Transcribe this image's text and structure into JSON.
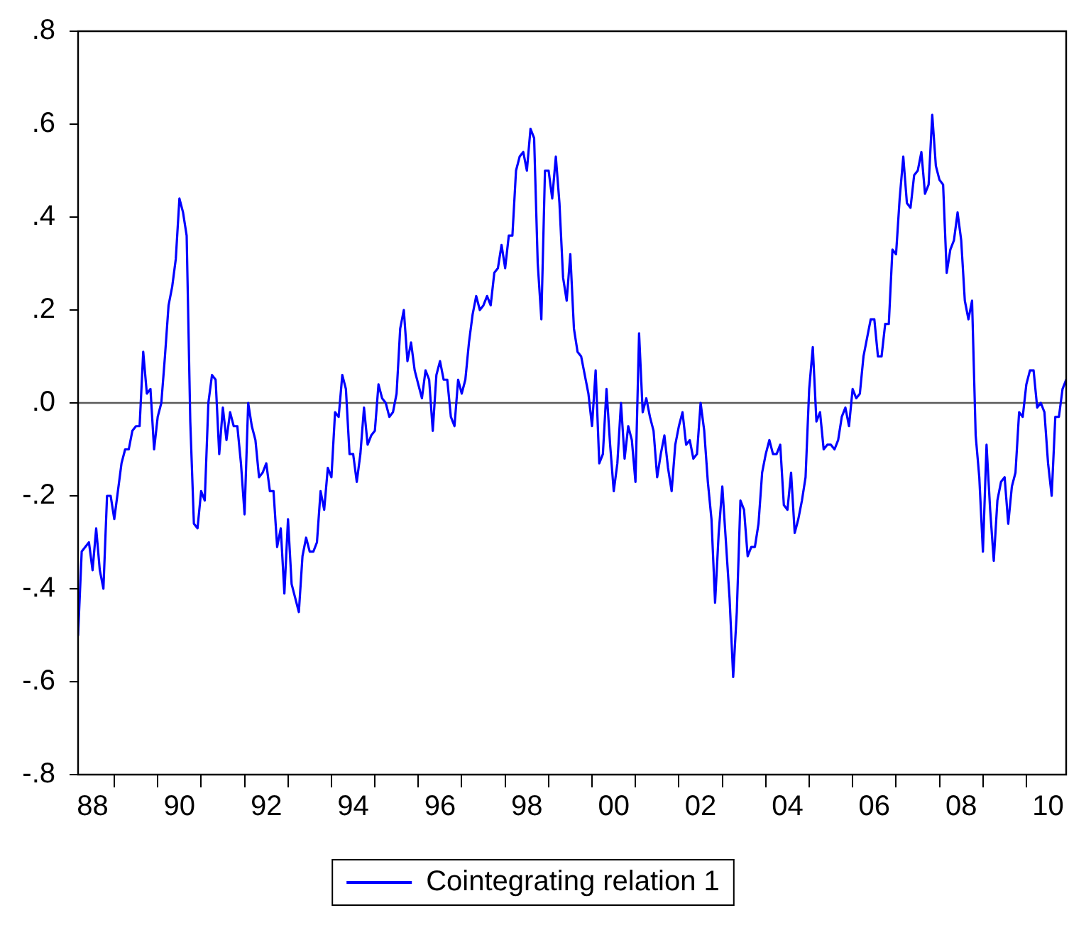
{
  "chart_data": {
    "type": "line",
    "x": [
      "1988-03",
      "1988-04",
      "1988-05",
      "1988-06",
      "1988-07",
      "1988-08",
      "1988-09",
      "1988-10",
      "1988-11",
      "1988-12",
      "1989-01",
      "1989-02",
      "1989-03",
      "1989-04",
      "1989-05",
      "1989-06",
      "1989-07",
      "1989-08",
      "1989-09",
      "1989-10",
      "1989-11",
      "1989-12",
      "1990-01",
      "1990-02",
      "1990-03",
      "1990-04",
      "1990-05",
      "1990-06",
      "1990-07",
      "1990-08",
      "1990-09",
      "1990-10",
      "1990-11",
      "1990-12",
      "1991-01",
      "1991-02",
      "1991-03",
      "1991-04",
      "1991-05",
      "1991-06",
      "1991-07",
      "1991-08",
      "1991-09",
      "1991-10",
      "1991-11",
      "1991-12",
      "1992-01",
      "1992-02",
      "1992-03",
      "1992-04",
      "1992-05",
      "1992-06",
      "1992-07",
      "1992-08",
      "1992-09",
      "1992-10",
      "1992-11",
      "1992-12",
      "1993-01",
      "1993-02",
      "1993-03",
      "1993-04",
      "1993-05",
      "1993-06",
      "1993-07",
      "1993-08",
      "1993-09",
      "1993-10",
      "1993-11",
      "1993-12",
      "1994-01",
      "1994-02",
      "1994-03",
      "1994-04",
      "1994-05",
      "1994-06",
      "1994-07",
      "1994-08",
      "1994-09",
      "1994-10",
      "1994-11",
      "1994-12",
      "1995-01",
      "1995-02",
      "1995-03",
      "1995-04",
      "1995-05",
      "1995-06",
      "1995-07",
      "1995-08",
      "1995-09",
      "1995-10",
      "1995-11",
      "1995-12",
      "1996-01",
      "1996-02",
      "1996-03",
      "1996-04",
      "1996-05",
      "1996-06",
      "1996-07",
      "1996-08",
      "1996-09",
      "1996-10",
      "1996-11",
      "1996-12",
      "1997-01",
      "1997-02",
      "1997-03",
      "1997-04",
      "1997-05",
      "1997-06",
      "1997-07",
      "1997-08",
      "1997-09",
      "1997-10",
      "1997-11",
      "1997-12",
      "1998-01",
      "1998-02",
      "1998-03",
      "1998-04",
      "1998-05",
      "1998-06",
      "1998-07",
      "1998-08",
      "1998-09",
      "1998-10",
      "1998-11",
      "1998-12",
      "1999-01",
      "1999-02",
      "1999-03",
      "1999-04",
      "1999-05",
      "1999-06",
      "1999-07",
      "1999-08",
      "1999-09",
      "1999-10",
      "1999-11",
      "1999-12",
      "2000-01",
      "2000-02",
      "2000-03",
      "2000-04",
      "2000-05",
      "2000-06",
      "2000-07",
      "2000-08",
      "2000-09",
      "2000-10",
      "2000-11",
      "2000-12",
      "2001-01",
      "2001-02",
      "2001-03",
      "2001-04",
      "2001-05",
      "2001-06",
      "2001-07",
      "2001-08",
      "2001-09",
      "2001-10",
      "2001-11",
      "2001-12",
      "2002-01",
      "2002-02",
      "2002-03",
      "2002-04",
      "2002-05",
      "2002-06",
      "2002-07",
      "2002-08",
      "2002-09",
      "2002-10",
      "2002-11",
      "2002-12",
      "2003-01",
      "2003-02",
      "2003-03",
      "2003-04",
      "2003-05",
      "2003-06",
      "2003-07",
      "2003-08",
      "2003-09",
      "2003-10",
      "2003-11",
      "2003-12",
      "2004-01",
      "2004-02",
      "2004-03",
      "2004-04",
      "2004-05",
      "2004-06",
      "2004-07",
      "2004-08",
      "2004-09",
      "2004-10",
      "2004-11",
      "2004-12",
      "2005-01",
      "2005-02",
      "2005-03",
      "2005-04",
      "2005-05",
      "2005-06",
      "2005-07",
      "2005-08",
      "2005-09",
      "2005-10",
      "2005-11",
      "2005-12",
      "2006-01",
      "2006-02",
      "2006-03",
      "2006-04",
      "2006-05",
      "2006-06",
      "2006-07",
      "2006-08",
      "2006-09",
      "2006-10",
      "2006-11",
      "2006-12",
      "2007-01",
      "2007-02",
      "2007-03",
      "2007-04",
      "2007-05",
      "2007-06",
      "2007-07",
      "2007-08",
      "2007-09",
      "2007-10",
      "2007-11",
      "2007-12",
      "2008-01",
      "2008-02",
      "2008-03",
      "2008-04",
      "2008-05",
      "2008-06",
      "2008-07",
      "2008-08",
      "2008-09",
      "2008-10",
      "2008-11",
      "2008-12",
      "2009-01",
      "2009-02",
      "2009-03",
      "2009-04",
      "2009-05",
      "2009-06",
      "2009-07",
      "2009-08",
      "2009-09",
      "2009-10",
      "2009-11",
      "2009-12",
      "2010-01",
      "2010-02",
      "2010-03",
      "2010-04",
      "2010-05",
      "2010-06",
      "2010-07",
      "2010-08",
      "2010-09",
      "2010-10",
      "2010-11",
      "2010-12"
    ],
    "series": [
      {
        "name": "Cointegrating relation 1",
        "color": "#0000ff",
        "values": [
          -0.5,
          -0.32,
          -0.31,
          -0.3,
          -0.36,
          -0.27,
          -0.36,
          -0.4,
          -0.2,
          -0.2,
          -0.25,
          -0.19,
          -0.13,
          -0.1,
          -0.1,
          -0.06,
          -0.05,
          -0.05,
          0.11,
          0.02,
          0.03,
          -0.1,
          -0.03,
          0.0,
          0.1,
          0.21,
          0.25,
          0.31,
          0.44,
          0.41,
          0.36,
          -0.04,
          -0.26,
          -0.27,
          -0.19,
          -0.21,
          0.0,
          0.06,
          0.05,
          -0.11,
          -0.01,
          -0.08,
          -0.02,
          -0.05,
          -0.05,
          -0.13,
          -0.24,
          0.0,
          -0.05,
          -0.08,
          -0.16,
          -0.15,
          -0.13,
          -0.19,
          -0.19,
          -0.31,
          -0.27,
          -0.41,
          -0.25,
          -0.39,
          -0.42,
          -0.45,
          -0.33,
          -0.29,
          -0.32,
          -0.32,
          -0.3,
          -0.19,
          -0.23,
          -0.14,
          -0.16,
          -0.02,
          -0.03,
          0.06,
          0.03,
          -0.11,
          -0.11,
          -0.17,
          -0.11,
          -0.01,
          -0.09,
          -0.07,
          -0.06,
          0.04,
          0.01,
          0.0,
          -0.03,
          -0.02,
          0.02,
          0.16,
          0.2,
          0.09,
          0.13,
          0.07,
          0.04,
          0.01,
          0.07,
          0.05,
          -0.06,
          0.06,
          0.09,
          0.05,
          0.05,
          -0.03,
          -0.05,
          0.05,
          0.02,
          0.05,
          0.13,
          0.19,
          0.23,
          0.2,
          0.21,
          0.23,
          0.21,
          0.28,
          0.29,
          0.34,
          0.29,
          0.36,
          0.36,
          0.5,
          0.53,
          0.54,
          0.5,
          0.59,
          0.57,
          0.3,
          0.18,
          0.5,
          0.5,
          0.44,
          0.53,
          0.43,
          0.27,
          0.22,
          0.32,
          0.16,
          0.11,
          0.1,
          0.06,
          0.02,
          -0.05,
          0.07,
          -0.13,
          -0.11,
          0.03,
          -0.09,
          -0.19,
          -0.13,
          0.0,
          -0.12,
          -0.05,
          -0.08,
          -0.17,
          0.15,
          -0.02,
          0.01,
          -0.03,
          -0.06,
          -0.16,
          -0.11,
          -0.07,
          -0.14,
          -0.19,
          -0.09,
          -0.05,
          -0.02,
          -0.09,
          -0.08,
          -0.12,
          -0.11,
          0.0,
          -0.06,
          -0.17,
          -0.25,
          -0.43,
          -0.28,
          -0.18,
          -0.3,
          -0.42,
          -0.59,
          -0.45,
          -0.21,
          -0.23,
          -0.33,
          -0.31,
          -0.31,
          -0.26,
          -0.15,
          -0.11,
          -0.08,
          -0.11,
          -0.11,
          -0.09,
          -0.22,
          -0.23,
          -0.15,
          -0.28,
          -0.25,
          -0.21,
          -0.16,
          0.03,
          0.12,
          -0.04,
          -0.02,
          -0.1,
          -0.09,
          -0.09,
          -0.1,
          -0.08,
          -0.03,
          -0.01,
          -0.05,
          0.03,
          0.01,
          0.02,
          0.1,
          0.14,
          0.18,
          0.18,
          0.1,
          0.1,
          0.17,
          0.17,
          0.33,
          0.32,
          0.44,
          0.53,
          0.43,
          0.42,
          0.49,
          0.5,
          0.54,
          0.45,
          0.47,
          0.62,
          0.51,
          0.48,
          0.47,
          0.28,
          0.33,
          0.35,
          0.41,
          0.35,
          0.22,
          0.18,
          0.22,
          -0.07,
          -0.16,
          -0.32,
          -0.09,
          -0.23,
          -0.34,
          -0.21,
          -0.17,
          -0.16,
          -0.26,
          -0.18,
          -0.15,
          -0.02,
          -0.03,
          0.04,
          0.07,
          0.07,
          -0.01,
          0.0,
          -0.02,
          -0.13,
          -0.2,
          -0.03,
          -0.03,
          0.03,
          0.05
        ]
      }
    ],
    "xlim": [
      "1988-03",
      "2010-12"
    ],
    "xticks": [
      {
        "value": "1988-07",
        "label": "88"
      },
      {
        "value": "1989",
        "label": null
      },
      {
        "value": "1990",
        "label": null
      },
      {
        "value": "1990-07",
        "label": "90"
      },
      {
        "value": "1991",
        "label": null
      },
      {
        "value": "1992",
        "label": null
      },
      {
        "value": "1992-07",
        "label": "92"
      },
      {
        "value": "1993",
        "label": null
      },
      {
        "value": "1994",
        "label": null
      },
      {
        "value": "1994-07",
        "label": "94"
      },
      {
        "value": "1995",
        "label": null
      },
      {
        "value": "1996",
        "label": null
      },
      {
        "value": "1996-07",
        "label": "96"
      },
      {
        "value": "1997",
        "label": null
      },
      {
        "value": "1998",
        "label": null
      },
      {
        "value": "1998-07",
        "label": "98"
      },
      {
        "value": "1999",
        "label": null
      },
      {
        "value": "2000",
        "label": null
      },
      {
        "value": "2000-07",
        "label": "00"
      },
      {
        "value": "2001",
        "label": null
      },
      {
        "value": "2002",
        "label": null
      },
      {
        "value": "2002-07",
        "label": "02"
      },
      {
        "value": "2003",
        "label": null
      },
      {
        "value": "2004",
        "label": null
      },
      {
        "value": "2004-07",
        "label": "04"
      },
      {
        "value": "2005",
        "label": null
      },
      {
        "value": "2006",
        "label": null
      },
      {
        "value": "2006-07",
        "label": "06"
      },
      {
        "value": "2007",
        "label": null
      },
      {
        "value": "2008",
        "label": null
      },
      {
        "value": "2008-07",
        "label": "08"
      },
      {
        "value": "2009",
        "label": null
      },
      {
        "value": "2010",
        "label": null
      },
      {
        "value": "2010-07",
        "label": "10"
      }
    ],
    "ylim": [
      -0.8,
      0.8
    ],
    "yticks": [
      {
        "value": -0.8,
        "label": "-.8"
      },
      {
        "value": -0.6,
        "label": "-.6"
      },
      {
        "value": -0.4,
        "label": "-.4"
      },
      {
        "value": -0.2,
        "label": "-.2"
      },
      {
        "value": 0,
        "label": ".0"
      },
      {
        "value": 0.2,
        "label": ".2"
      },
      {
        "value": 0.4,
        "label": ".4"
      },
      {
        "value": 0.6,
        "label": ".6"
      },
      {
        "value": 0.8,
        "label": ".8"
      }
    ],
    "ref_lines": [
      {
        "axis": "y",
        "value": 0,
        "color": "#5a5a5a"
      }
    ],
    "legend": "bottom"
  }
}
